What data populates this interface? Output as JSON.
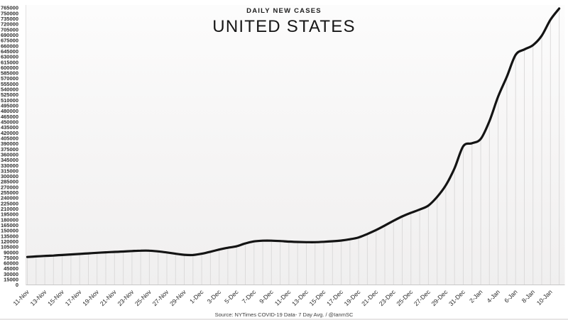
{
  "header": {
    "subtitle": "DAILY NEW CASES",
    "title": "UNITED STATES"
  },
  "footer": {
    "source": "Source: NYTimes COVID-19 Data- 7 Day Avg. / @IanmSC"
  },
  "chart_data": {
    "type": "line",
    "title": "UNITED STATES",
    "subtitle": "DAILY NEW CASES",
    "xlabel": "",
    "ylabel": "",
    "ylim": [
      0,
      765000
    ],
    "ytick_step": 15000,
    "xtick_every": 2,
    "grid": "drop-lines-per-day",
    "line_color": "#141414",
    "drop_line_color": "#dcdbdb",
    "categories": [
      "11-Nov",
      "12-Nov",
      "13-Nov",
      "14-Nov",
      "15-Nov",
      "16-Nov",
      "17-Nov",
      "18-Nov",
      "19-Nov",
      "20-Nov",
      "21-Nov",
      "22-Nov",
      "23-Nov",
      "24-Nov",
      "25-Nov",
      "26-Nov",
      "27-Nov",
      "28-Nov",
      "29-Nov",
      "30-Nov",
      "1-Dec",
      "2-Dec",
      "3-Dec",
      "4-Dec",
      "5-Dec",
      "6-Dec",
      "7-Dec",
      "8-Dec",
      "9-Dec",
      "10-Dec",
      "11-Dec",
      "12-Dec",
      "13-Dec",
      "14-Dec",
      "15-Dec",
      "16-Dec",
      "17-Dec",
      "18-Dec",
      "19-Dec",
      "20-Dec",
      "21-Dec",
      "22-Dec",
      "23-Dec",
      "24-Dec",
      "25-Dec",
      "26-Dec",
      "27-Dec",
      "28-Dec",
      "29-Dec",
      "30-Dec",
      "31-Dec",
      "1-Jan",
      "2-Jan",
      "3-Jan",
      "4-Jan",
      "5-Jan",
      "6-Jan",
      "7-Jan",
      "8-Jan",
      "9-Jan",
      "10-Jan",
      "11-Jan"
    ],
    "values": [
      77000,
      78500,
      80000,
      81000,
      82500,
      84000,
      85500,
      87000,
      88500,
      90000,
      91000,
      92000,
      93500,
      94500,
      94500,
      92500,
      89500,
      86000,
      83000,
      82500,
      86000,
      91500,
      97500,
      102500,
      106500,
      114500,
      120000,
      122000,
      122000,
      121000,
      119500,
      118500,
      118000,
      118000,
      119000,
      120500,
      122500,
      126000,
      131000,
      140500,
      151500,
      164000,
      177000,
      189000,
      199000,
      208000,
      219000,
      243000,
      275000,
      322000,
      383000,
      391000,
      403000,
      452000,
      520000,
      575000,
      635000,
      650000,
      662000,
      688000,
      732000,
      763000
    ]
  }
}
